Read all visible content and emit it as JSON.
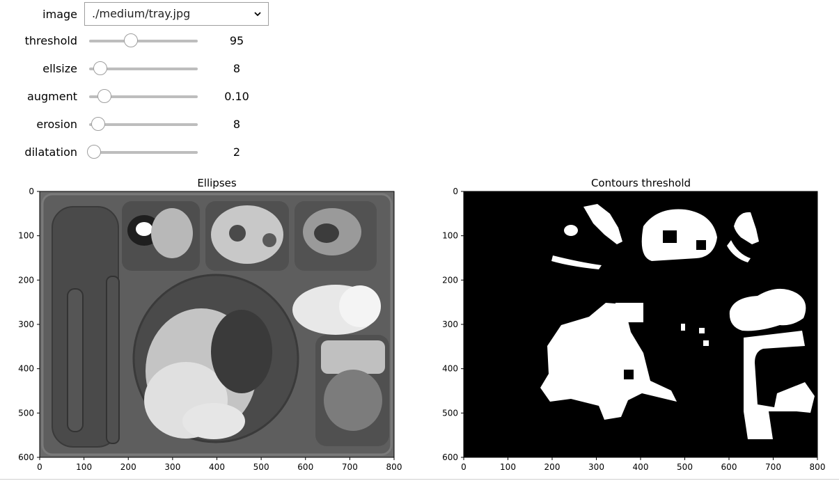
{
  "controls": {
    "image": {
      "label": "image",
      "value": "./medium/tray.jpg"
    },
    "sliders": [
      {
        "key": "threshold",
        "label": "threshold",
        "display": "95",
        "fraction": 0.38
      },
      {
        "key": "ellsize",
        "label": "ellsize",
        "display": "8",
        "fraction": 0.08
      },
      {
        "key": "augment",
        "label": "augment",
        "display": "0.10",
        "fraction": 0.12
      },
      {
        "key": "erosion",
        "label": "erosion",
        "display": "8",
        "fraction": 0.06
      },
      {
        "key": "dilatation",
        "label": "dilatation",
        "display": "2",
        "fraction": 0.02
      }
    ]
  },
  "plots": [
    {
      "title": "Ellipses",
      "xlim": [
        0,
        800
      ],
      "ylim": [
        600,
        0
      ],
      "xticks": [
        "0",
        "100",
        "200",
        "300",
        "400",
        "500",
        "600",
        "700",
        "800"
      ],
      "yticks": [
        "0",
        "100",
        "200",
        "300",
        "400",
        "500",
        "600"
      ],
      "colormap": "grayscale"
    },
    {
      "title": "Contours threshold",
      "xlim": [
        0,
        800
      ],
      "ylim": [
        600,
        0
      ],
      "xticks": [
        "0",
        "100",
        "200",
        "300",
        "400",
        "500",
        "600",
        "700",
        "800"
      ],
      "yticks": [
        "0",
        "100",
        "200",
        "300",
        "400",
        "500",
        "600"
      ],
      "colormap": "binary"
    }
  ]
}
